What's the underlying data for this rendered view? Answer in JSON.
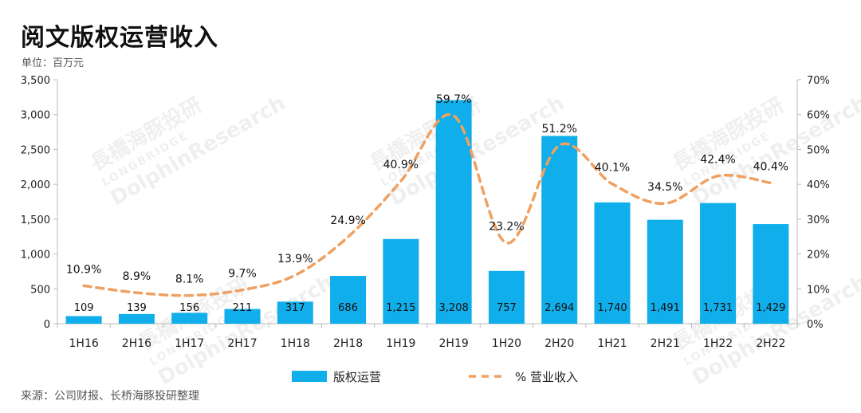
{
  "header": {
    "title": "阅文版权运营收入",
    "unit": "单位：百万元"
  },
  "footer": {
    "source": "来源：公司财报、长桥海豚投研整理"
  },
  "watermark": {
    "cn": "長橋海豚投研",
    "en1": "LONGBRIDGE",
    "en2": "DolphinResearch"
  },
  "colors": {
    "bar": "#10AEEA",
    "line": "#F0A060",
    "axis": "#BBBBBB"
  },
  "chart_data": {
    "type": "bar",
    "categories": [
      "1H16",
      "2H16",
      "1H17",
      "2H17",
      "1H18",
      "2H18",
      "1H19",
      "2H19",
      "1H20",
      "2H20",
      "1H21",
      "2H21",
      "1H22",
      "2H22"
    ],
    "series": [
      {
        "name": "版权运营",
        "type": "bar",
        "axis": "left",
        "values": [
          109,
          139,
          156,
          211,
          317,
          686,
          1215,
          3208,
          757,
          2694,
          1740,
          1491,
          1731,
          1429
        ],
        "labels": [
          "109",
          "139",
          "156",
          "211",
          "317",
          "686",
          "1,215",
          "3,208",
          "757",
          "2,694",
          "1,740",
          "1,491",
          "1,731",
          "1,429"
        ]
      },
      {
        "name": "% 营业收入",
        "type": "line",
        "style": "dashed",
        "axis": "right",
        "values": [
          10.9,
          8.9,
          8.1,
          9.7,
          13.9,
          24.9,
          40.9,
          59.7,
          23.2,
          51.2,
          40.1,
          34.5,
          42.4,
          40.4
        ],
        "labels": [
          "10.9%",
          "8.9%",
          "8.1%",
          "9.7%",
          "13.9%",
          "24.9%",
          "40.9%",
          "59.7%",
          "23.2%",
          "51.2%",
          "40.1%",
          "34.5%",
          "42.4%",
          "40.4%"
        ]
      }
    ],
    "y_left": {
      "min": 0,
      "max": 3500,
      "ticks": [
        "0",
        "500",
        "1,000",
        "1,500",
        "2,000",
        "2,500",
        "3,000",
        "3,500"
      ]
    },
    "y_right": {
      "min": 0,
      "max": 70,
      "ticks": [
        "0%",
        "10%",
        "20%",
        "30%",
        "40%",
        "50%",
        "60%",
        "70%"
      ]
    },
    "grid": false,
    "legend": "bottom-center"
  }
}
